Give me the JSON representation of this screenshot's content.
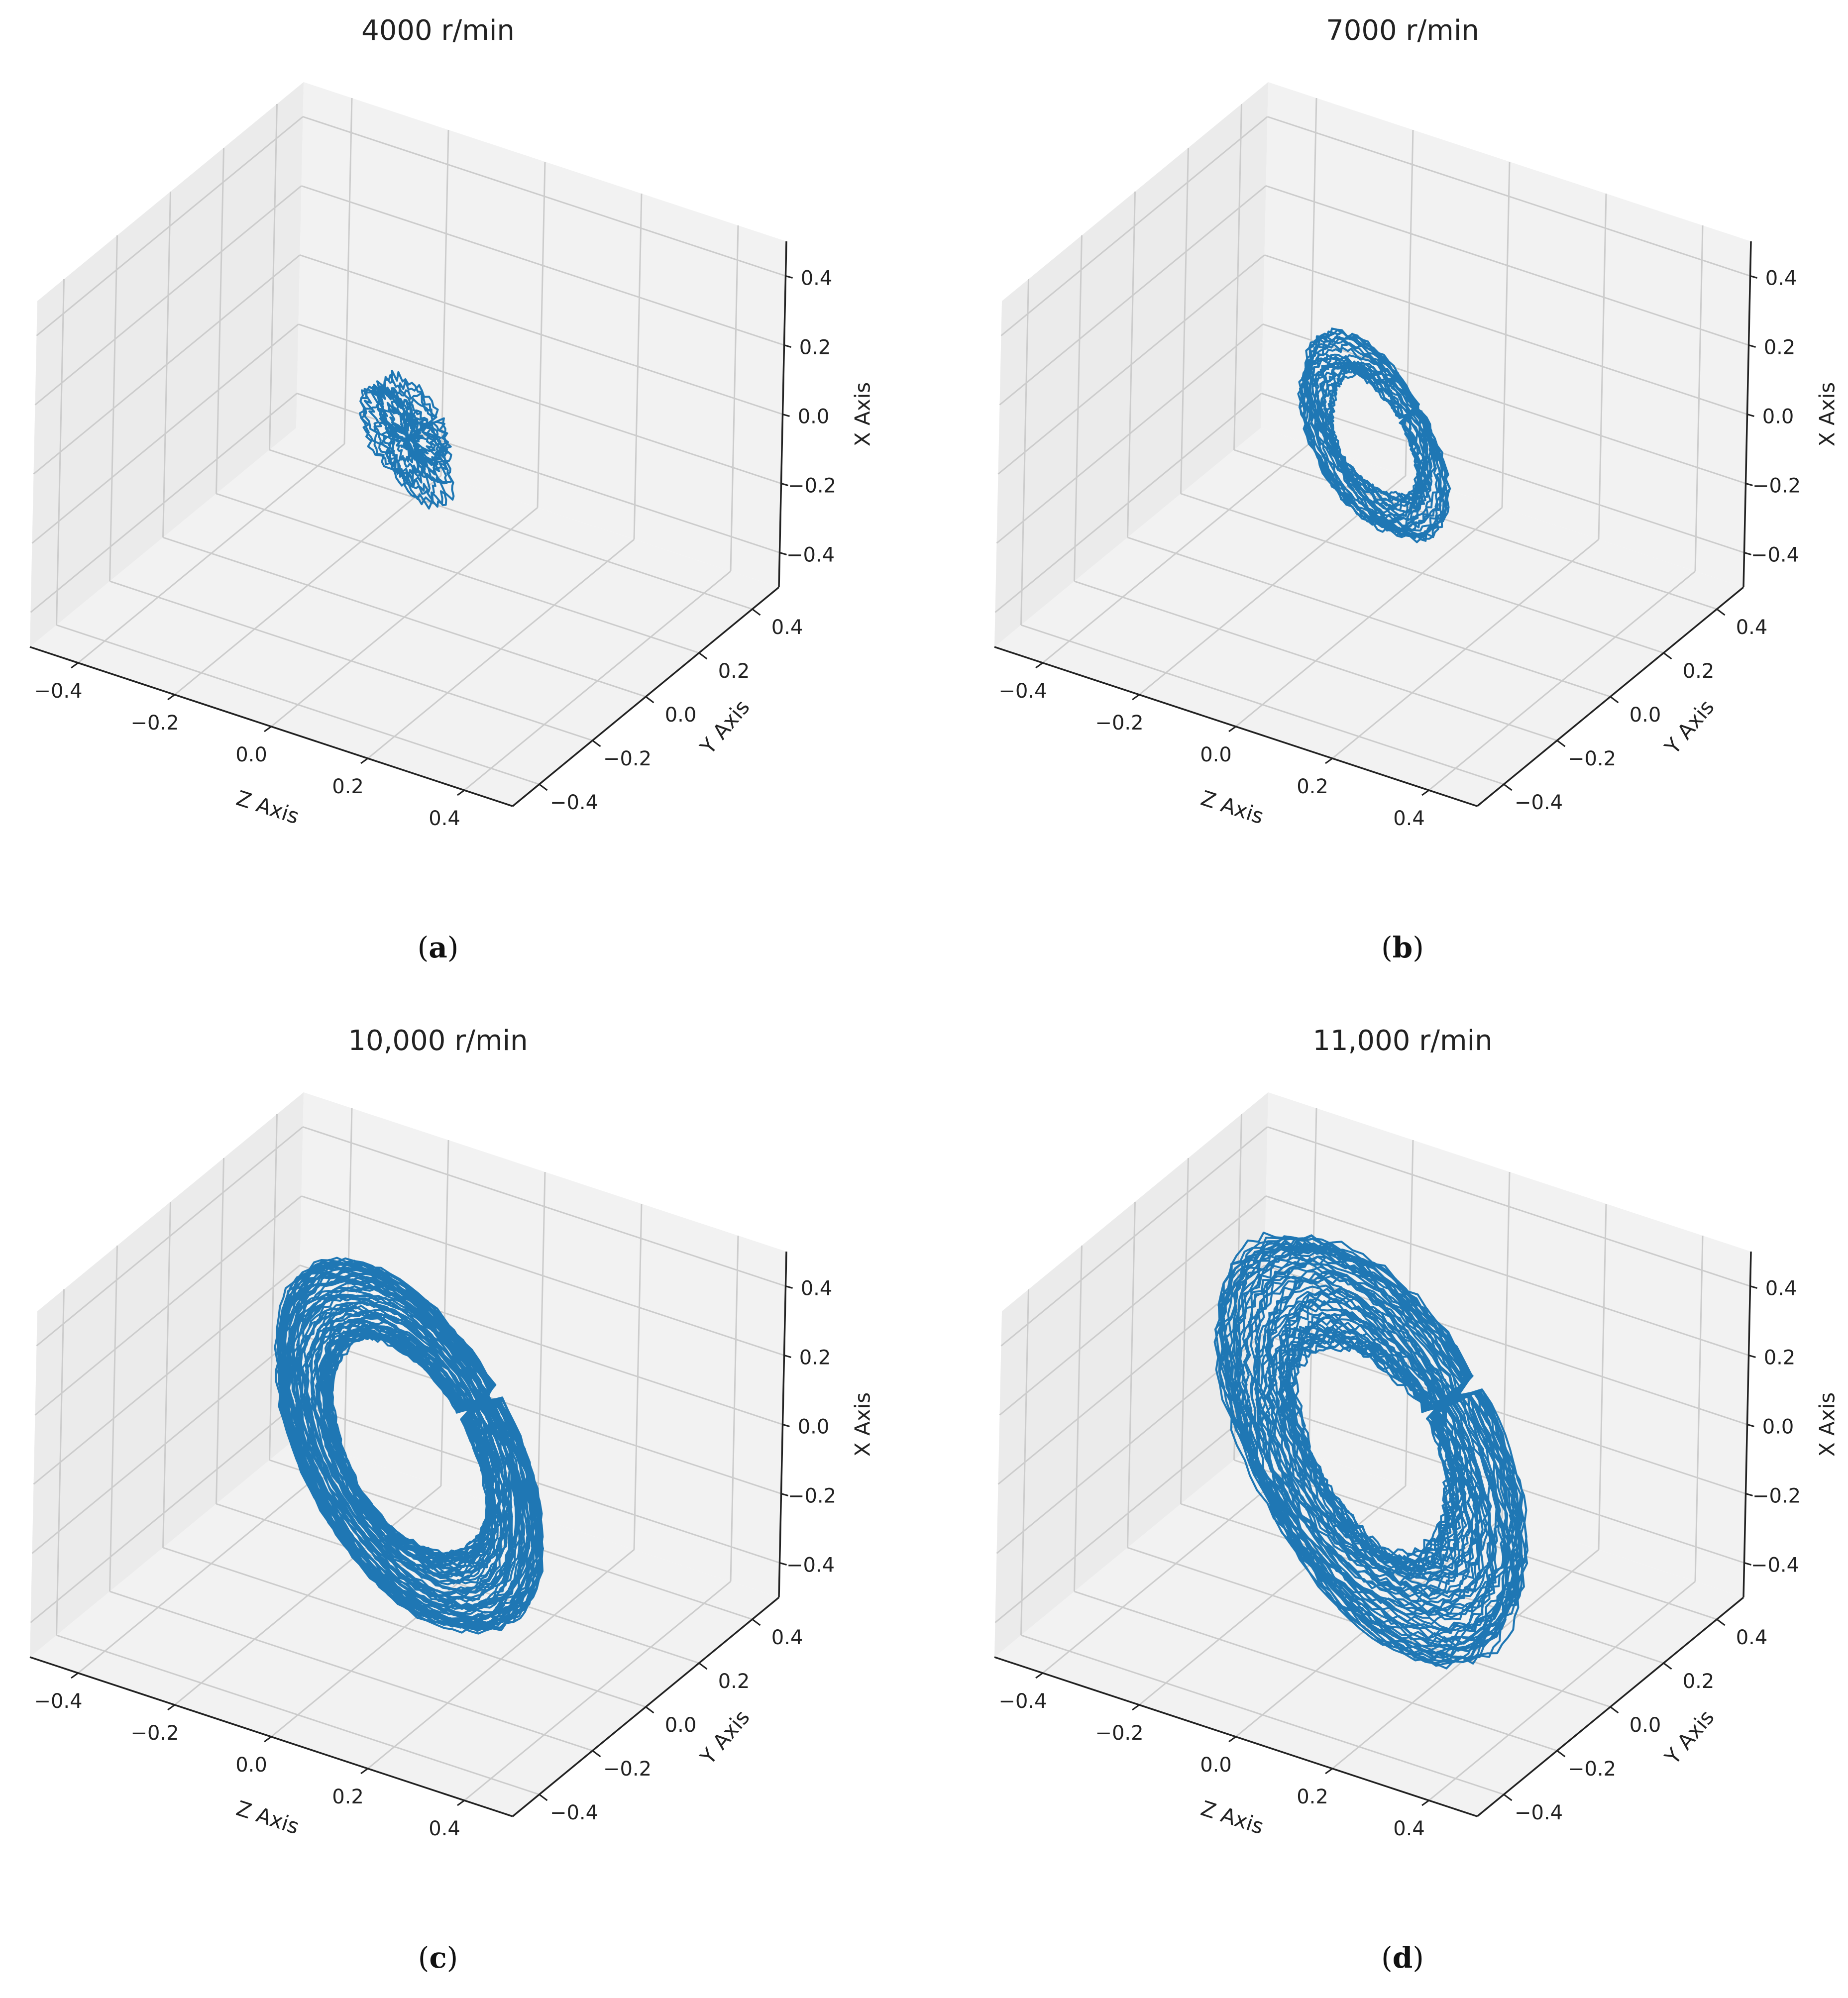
{
  "figure": {
    "panels": [
      {
        "id": "a",
        "label_open": "(",
        "label_letter": "a",
        "label_close": ")"
      },
      {
        "id": "b",
        "label_open": "(",
        "label_letter": "b",
        "label_close": ")"
      },
      {
        "id": "c",
        "label_open": "(",
        "label_letter": "c",
        "label_close": ")"
      },
      {
        "id": "d",
        "label_open": "(",
        "label_letter": "d",
        "label_close": ")"
      }
    ]
  },
  "colors": {
    "trajectory": "#1f77b4",
    "pane": "#f2f2f2",
    "pane_side": "#ebebeb",
    "grid": "#cccccc",
    "axis_line": "#222222",
    "text": "#222222"
  },
  "chart_data": [
    {
      "type": "line",
      "subtype": "3d-trajectory",
      "title": "4000 r/min",
      "xlabel": "Z Axis",
      "ylabel": "Y Axis",
      "zlabel": "X Axis",
      "z_axis_ticks": [
        "−0.4",
        "−0.2",
        "0.0",
        "0.2",
        "0.4"
      ],
      "y_axis_ticks": [
        "−0.4",
        "−0.2",
        "0.0",
        "0.2",
        "0.4"
      ],
      "x_axis_ticks": [
        "−0.4",
        "−0.2",
        "0.0",
        "0.2",
        "0.4"
      ],
      "lim": [
        -0.5,
        0.5
      ],
      "grid": true,
      "orbit": {
        "amplitude": 0.11,
        "inner_ratio": 0.2,
        "loops": 14,
        "noise": 0.35
      }
    },
    {
      "type": "line",
      "subtype": "3d-trajectory",
      "title": "7000 r/min",
      "xlabel": "Z Axis",
      "ylabel": "Y Axis",
      "zlabel": "X Axis",
      "z_axis_ticks": [
        "−0.4",
        "−0.2",
        "0.0",
        "0.2",
        "0.4"
      ],
      "y_axis_ticks": [
        "−0.4",
        "−0.2",
        "0.0",
        "0.2",
        "0.4"
      ],
      "x_axis_ticks": [
        "−0.4",
        "−0.2",
        "0.0",
        "0.2",
        "0.4"
      ],
      "lim": [
        -0.5,
        0.5
      ],
      "grid": true,
      "orbit": {
        "amplitude": 0.19,
        "inner_ratio": 0.62,
        "loops": 26,
        "noise": 0.12
      }
    },
    {
      "type": "line",
      "subtype": "3d-trajectory",
      "title": "10,000 r/min",
      "xlabel": "Z Axis",
      "ylabel": "Y Axis",
      "zlabel": "X Axis",
      "z_axis_ticks": [
        "−0.4",
        "−0.2",
        "0.0",
        "0.2",
        "0.4"
      ],
      "y_axis_ticks": [
        "−0.4",
        "−0.2",
        "0.0",
        "0.2",
        "0.4"
      ],
      "x_axis_ticks": [
        "−0.4",
        "−0.2",
        "0.0",
        "0.2",
        "0.4"
      ],
      "lim": [
        -0.5,
        0.5
      ],
      "grid": true,
      "orbit": {
        "amplitude": 0.35,
        "inner_ratio": 0.6,
        "loops": 70,
        "noise": 0.05
      }
    },
    {
      "type": "line",
      "subtype": "3d-trajectory",
      "title": "11,000 r/min",
      "xlabel": "Z Axis",
      "ylabel": "Y Axis",
      "zlabel": "X Axis",
      "z_axis_ticks": [
        "−0.4",
        "−0.2",
        "0.0",
        "0.2",
        "0.4"
      ],
      "y_axis_ticks": [
        "−0.4",
        "−0.2",
        "0.0",
        "0.2",
        "0.4"
      ],
      "x_axis_ticks": [
        "−0.4",
        "−0.2",
        "0.0",
        "0.2",
        "0.4"
      ],
      "lim": [
        -0.5,
        0.5
      ],
      "grid": true,
      "orbit": {
        "amplitude": 0.4,
        "inner_ratio": 0.52,
        "loops": 60,
        "noise": 0.08
      }
    }
  ]
}
